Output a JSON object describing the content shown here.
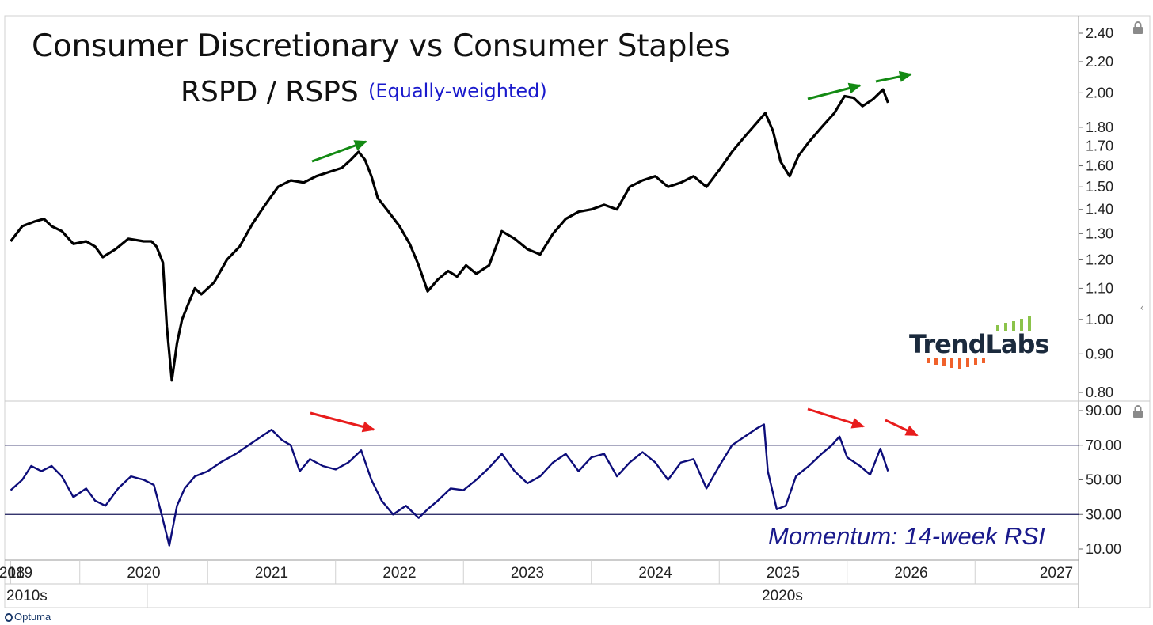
{
  "window": {
    "title": "Consumer Discretionary vs Consumer Staples",
    "subtitle": "RSPD / RSPS",
    "subtitle_note": "(Equally-weighted)",
    "watermark_brand": "TrendLabs",
    "footer_brand": "Optuma",
    "colors": {
      "price": "#000000",
      "rsi": "#0d0d7a",
      "up_arrow": "#138a13",
      "down_arrow": "#e81c1c",
      "logo_bars": "#8bc34a",
      "logo_ticks": "#f0612b"
    },
    "icons": [
      "lock-icon",
      "chevron-left-icon"
    ]
  },
  "chart_data": [
    {
      "type": "line",
      "scale": "log",
      "title": "Consumer Discretionary vs Consumer Staples",
      "subtitle": "RSPD / RSPS",
      "ylim": [
        0.78,
        2.5
      ],
      "yticks": [
        "2.40",
        "2.20",
        "2.00",
        "1.80",
        "1.70",
        "1.60",
        "1.50",
        "1.40",
        "1.30",
        "1.20",
        "1.10",
        "1.00",
        "0.90",
        "0.80"
      ],
      "ytick_values": [
        2.4,
        2.2,
        2.0,
        1.8,
        1.7,
        1.6,
        1.5,
        1.4,
        1.3,
        1.2,
        1.1,
        1.0,
        0.9,
        0.8
      ],
      "series": [
        {
          "points": [
            [
              2018.96,
              1.27
            ],
            [
              2019.05,
              1.33
            ],
            [
              2019.15,
              1.35
            ],
            [
              2019.22,
              1.36
            ],
            [
              2019.28,
              1.33
            ],
            [
              2019.36,
              1.31
            ],
            [
              2019.45,
              1.26
            ],
            [
              2019.55,
              1.27
            ],
            [
              2019.62,
              1.25
            ],
            [
              2019.68,
              1.21
            ],
            [
              2019.78,
              1.24
            ],
            [
              2019.88,
              1.28
            ],
            [
              2020.0,
              1.27
            ],
            [
              2020.06,
              1.27
            ],
            [
              2020.1,
              1.25
            ],
            [
              2020.15,
              1.19
            ],
            [
              2020.18,
              0.98
            ],
            [
              2020.22,
              0.83
            ],
            [
              2020.26,
              0.93
            ],
            [
              2020.3,
              1.0
            ],
            [
              2020.35,
              1.05
            ],
            [
              2020.4,
              1.1
            ],
            [
              2020.45,
              1.08
            ],
            [
              2020.55,
              1.12
            ],
            [
              2020.65,
              1.2
            ],
            [
              2020.75,
              1.25
            ],
            [
              2020.85,
              1.34
            ],
            [
              2020.95,
              1.42
            ],
            [
              2021.05,
              1.5
            ],
            [
              2021.15,
              1.53
            ],
            [
              2021.25,
              1.52
            ],
            [
              2021.35,
              1.55
            ],
            [
              2021.45,
              1.57
            ],
            [
              2021.55,
              1.59
            ],
            [
              2021.62,
              1.63
            ],
            [
              2021.68,
              1.67
            ],
            [
              2021.73,
              1.63
            ],
            [
              2021.78,
              1.55
            ],
            [
              2021.83,
              1.45
            ],
            [
              2021.9,
              1.4
            ],
            [
              2022.0,
              1.33
            ],
            [
              2022.08,
              1.26
            ],
            [
              2022.15,
              1.18
            ],
            [
              2022.22,
              1.09
            ],
            [
              2022.3,
              1.13
            ],
            [
              2022.38,
              1.16
            ],
            [
              2022.45,
              1.14
            ],
            [
              2022.52,
              1.18
            ],
            [
              2022.6,
              1.15
            ],
            [
              2022.7,
              1.18
            ],
            [
              2022.8,
              1.31
            ],
            [
              2022.9,
              1.28
            ],
            [
              2023.0,
              1.24
            ],
            [
              2023.1,
              1.22
            ],
            [
              2023.2,
              1.3
            ],
            [
              2023.3,
              1.36
            ],
            [
              2023.4,
              1.39
            ],
            [
              2023.5,
              1.4
            ],
            [
              2023.6,
              1.42
            ],
            [
              2023.7,
              1.4
            ],
            [
              2023.8,
              1.5
            ],
            [
              2023.9,
              1.53
            ],
            [
              2024.0,
              1.55
            ],
            [
              2024.1,
              1.5
            ],
            [
              2024.2,
              1.52
            ],
            [
              2024.3,
              1.55
            ],
            [
              2024.4,
              1.5
            ],
            [
              2024.5,
              1.58
            ],
            [
              2024.6,
              1.67
            ],
            [
              2024.7,
              1.75
            ],
            [
              2024.8,
              1.83
            ],
            [
              2024.86,
              1.88
            ],
            [
              2024.92,
              1.78
            ],
            [
              2024.98,
              1.62
            ],
            [
              2025.05,
              1.55
            ],
            [
              2025.12,
              1.65
            ],
            [
              2025.2,
              1.72
            ],
            [
              2025.3,
              1.8
            ],
            [
              2025.4,
              1.88
            ],
            [
              2025.48,
              1.98
            ],
            [
              2025.55,
              1.97
            ],
            [
              2025.62,
              1.92
            ],
            [
              2025.7,
              1.96
            ],
            [
              2025.78,
              2.02
            ],
            [
              2025.82,
              1.94
            ]
          ]
        }
      ]
    },
    {
      "type": "line",
      "title": "Momentum: 14-week RSI",
      "ylim": [
        5,
        92
      ],
      "yticks": [
        "90.00",
        "70.00",
        "50.00",
        "30.00",
        "10.00"
      ],
      "ytick_values": [
        90,
        70,
        50,
        30,
        10
      ],
      "reference_lines": [
        70,
        30
      ],
      "series": [
        {
          "points": [
            [
              2018.96,
              44
            ],
            [
              2019.05,
              50
            ],
            [
              2019.12,
              58
            ],
            [
              2019.2,
              55
            ],
            [
              2019.28,
              58
            ],
            [
              2019.36,
              52
            ],
            [
              2019.45,
              40
            ],
            [
              2019.55,
              45
            ],
            [
              2019.62,
              38
            ],
            [
              2019.7,
              35
            ],
            [
              2019.8,
              45
            ],
            [
              2019.9,
              52
            ],
            [
              2020.0,
              50
            ],
            [
              2020.08,
              47
            ],
            [
              2020.14,
              30
            ],
            [
              2020.2,
              12
            ],
            [
              2020.26,
              35
            ],
            [
              2020.32,
              45
            ],
            [
              2020.4,
              52
            ],
            [
              2020.5,
              55
            ],
            [
              2020.6,
              60
            ],
            [
              2020.72,
              65
            ],
            [
              2020.82,
              70
            ],
            [
              2020.92,
              75
            ],
            [
              2021.0,
              79
            ],
            [
              2021.08,
              73
            ],
            [
              2021.15,
              70
            ],
            [
              2021.22,
              55
            ],
            [
              2021.3,
              62
            ],
            [
              2021.4,
              58
            ],
            [
              2021.5,
              56
            ],
            [
              2021.6,
              60
            ],
            [
              2021.7,
              67
            ],
            [
              2021.78,
              50
            ],
            [
              2021.86,
              38
            ],
            [
              2021.95,
              30
            ],
            [
              2022.05,
              35
            ],
            [
              2022.15,
              28
            ],
            [
              2022.22,
              33
            ],
            [
              2022.3,
              38
            ],
            [
              2022.4,
              45
            ],
            [
              2022.5,
              44
            ],
            [
              2022.6,
              50
            ],
            [
              2022.7,
              57
            ],
            [
              2022.8,
              65
            ],
            [
              2022.9,
              55
            ],
            [
              2023.0,
              48
            ],
            [
              2023.1,
              52
            ],
            [
              2023.2,
              60
            ],
            [
              2023.3,
              65
            ],
            [
              2023.4,
              55
            ],
            [
              2023.5,
              63
            ],
            [
              2023.6,
              65
            ],
            [
              2023.7,
              52
            ],
            [
              2023.8,
              60
            ],
            [
              2023.9,
              66
            ],
            [
              2024.0,
              60
            ],
            [
              2024.1,
              50
            ],
            [
              2024.2,
              60
            ],
            [
              2024.3,
              62
            ],
            [
              2024.4,
              45
            ],
            [
              2024.5,
              58
            ],
            [
              2024.6,
              70
            ],
            [
              2024.7,
              75
            ],
            [
              2024.8,
              80
            ],
            [
              2024.85,
              82
            ],
            [
              2024.88,
              55
            ],
            [
              2024.95,
              33
            ],
            [
              2025.02,
              35
            ],
            [
              2025.1,
              52
            ],
            [
              2025.2,
              58
            ],
            [
              2025.3,
              65
            ],
            [
              2025.38,
              70
            ],
            [
              2025.44,
              75
            ],
            [
              2025.5,
              63
            ],
            [
              2025.6,
              58
            ],
            [
              2025.68,
              53
            ],
            [
              2025.76,
              68
            ],
            [
              2025.82,
              55
            ]
          ]
        }
      ]
    }
  ],
  "axis": {
    "year_labels": [
      {
        "label": "18",
        "x": 2018.96
      },
      {
        "label": "2019",
        "x": 2019.0
      },
      {
        "label": "2020",
        "x": 2020.0
      },
      {
        "label": "2021",
        "x": 2021.0
      },
      {
        "label": "2022",
        "x": 2022.0
      },
      {
        "label": "2023",
        "x": 2023.0
      },
      {
        "label": "2024",
        "x": 2024.0
      },
      {
        "label": "2025",
        "x": 2025.0
      },
      {
        "label": "2026",
        "x": 2026.0
      },
      {
        "label": "2027",
        "x": 2027.0
      }
    ],
    "decade_labels": [
      "2010s",
      "2020s"
    ]
  },
  "annotations": {
    "rsi_label": "Momentum: 14-week RSI",
    "up_arrows": 3,
    "down_arrows": 3
  }
}
